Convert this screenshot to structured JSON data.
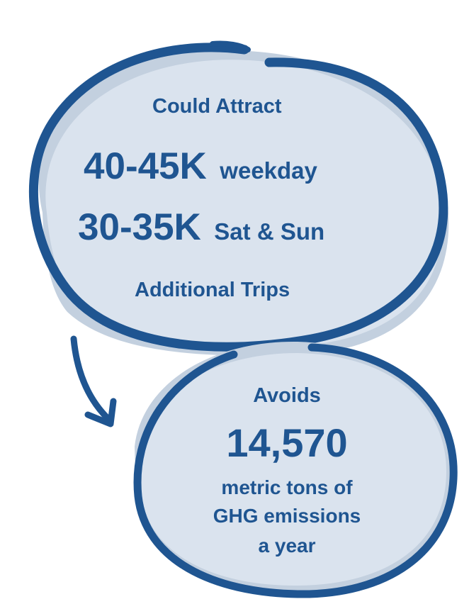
{
  "colors": {
    "fill": "#dae3ee",
    "shadow": "#c3d0df",
    "stroke": "#1f5591",
    "text": "#1f5591"
  },
  "top_bubble": {
    "heading": "Could Attract",
    "weekday_value": "40-45K",
    "weekday_label": "weekday",
    "weekend_value": "30-35K",
    "weekend_label": "Sat & Sun",
    "footer": "Additional Trips"
  },
  "bottom_bubble": {
    "heading": "Avoids",
    "value": "14,570",
    "line1": "metric tons of",
    "line2": "GHG emissions",
    "line3": "a year"
  },
  "connector": {
    "icon": "curved-arrow-icon"
  }
}
